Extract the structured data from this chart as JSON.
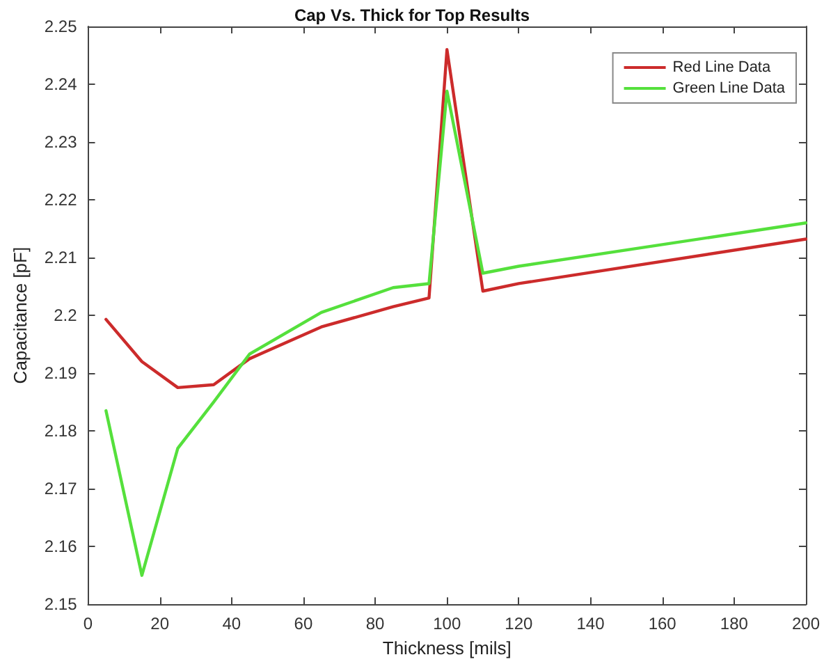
{
  "chart_data": {
    "type": "line",
    "title": "Cap Vs. Thick for Top Results",
    "xlabel": "Thickness [mils]",
    "ylabel": "Capacitance [pF]",
    "x": [
      5,
      15,
      25,
      35,
      45,
      65,
      85,
      95,
      100,
      110,
      120,
      200
    ],
    "series": [
      {
        "name": "Red Line Data",
        "color": "#cc2b2b",
        "values": [
          2.1993,
          2.192,
          2.1875,
          2.188,
          2.1925,
          2.198,
          2.2015,
          2.203,
          2.246,
          2.2042,
          2.2055,
          2.2132
        ]
      },
      {
        "name": "Green Line Data",
        "color": "#55e03c",
        "values": [
          2.1835,
          2.155,
          2.177,
          2.185,
          2.1933,
          2.2005,
          2.2048,
          2.2055,
          2.2388,
          2.2073,
          2.2085,
          2.216
        ]
      }
    ],
    "xlim": [
      0,
      200
    ],
    "xticks": [
      0,
      20,
      40,
      60,
      80,
      100,
      120,
      140,
      160,
      180,
      200
    ],
    "ylim": [
      2.15,
      2.25
    ],
    "yticks": [
      2.15,
      2.16,
      2.17,
      2.18,
      2.19,
      2.2,
      2.21,
      2.22,
      2.23,
      2.24,
      2.25
    ],
    "grid": false,
    "legend": "top right",
    "marker": "none",
    "line_style": "solid"
  }
}
